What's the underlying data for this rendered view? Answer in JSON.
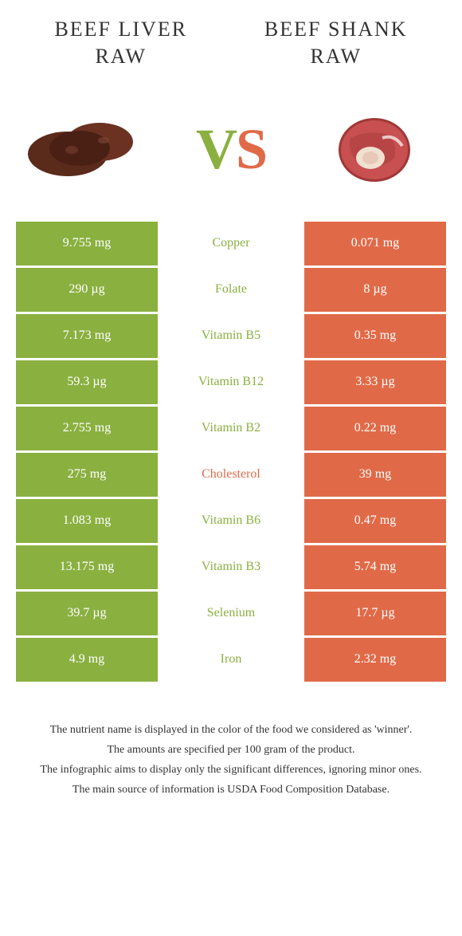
{
  "titles": {
    "left_line1": "Beef liver",
    "left_line2": "raw",
    "right_line1": "Beef shank",
    "right_line2": "raw"
  },
  "vs": {
    "v": "V",
    "s": "S"
  },
  "colors": {
    "left": "#8ab040",
    "right": "#e06a48",
    "text": "#333333",
    "white": "#ffffff"
  },
  "rows": [
    {
      "left": "9.755 mg",
      "label": "Copper",
      "winner": "left",
      "right": "0.071 mg"
    },
    {
      "left": "290 µg",
      "label": "Folate",
      "winner": "left",
      "right": "8 µg"
    },
    {
      "left": "7.173 mg",
      "label": "Vitamin B5",
      "winner": "left",
      "right": "0.35 mg"
    },
    {
      "left": "59.3 µg",
      "label": "Vitamin B12",
      "winner": "left",
      "right": "3.33 µg"
    },
    {
      "left": "2.755 mg",
      "label": "Vitamin B2",
      "winner": "left",
      "right": "0.22 mg"
    },
    {
      "left": "275 mg",
      "label": "Cholesterol",
      "winner": "right",
      "right": "39 mg"
    },
    {
      "left": "1.083 mg",
      "label": "Vitamin B6",
      "winner": "left",
      "right": "0.47 mg"
    },
    {
      "left": "13.175 mg",
      "label": "Vitamin B3",
      "winner": "left",
      "right": "5.74 mg"
    },
    {
      "left": "39.7 µg",
      "label": "Selenium",
      "winner": "left",
      "right": "17.7 µg"
    },
    {
      "left": "4.9 mg",
      "label": "Iron",
      "winner": "left",
      "right": "2.32 mg"
    }
  ],
  "footer": {
    "l1": "The nutrient name is displayed in the color of the food we considered as 'winner'.",
    "l2": "The amounts are specified per 100 gram of the product.",
    "l3": "The infographic aims to display only the significant differences, ignoring minor ones.",
    "l4": "The main source of information is USDA Food Composition Database."
  }
}
